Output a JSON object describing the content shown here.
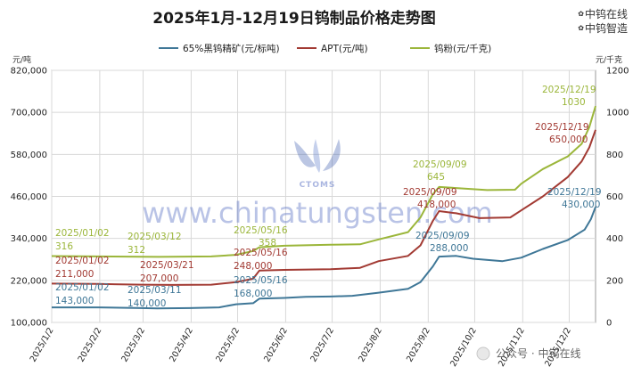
{
  "chart_data": {
    "type": "line",
    "title": "2025年1月-12月19日钨制品价格走势图",
    "y_left_unit": "元/吨",
    "y_right_unit": "元/千克",
    "ylim_left": [
      100000,
      820000
    ],
    "ylim_right": [
      0,
      1200
    ],
    "y_left_ticks": [
      100000,
      220000,
      340000,
      460000,
      580000,
      700000,
      820000
    ],
    "y_left_tick_labels": [
      "100,000",
      "220,000",
      "340,000",
      "460,000",
      "580,000",
      "700,000",
      "820,000"
    ],
    "y_right_ticks": [
      0,
      200,
      400,
      600,
      800,
      1000,
      1200
    ],
    "y_right_tick_labels": [
      "0",
      "200",
      "400",
      "600",
      "800",
      "1000",
      "1200"
    ],
    "x_ticks": [
      "2025/1/2",
      "2025/2/2",
      "2025/3/2",
      "2025/4/2",
      "2025/5/2",
      "2025/6/2",
      "2025/7/2",
      "2025/8/2",
      "2025/9/2",
      "2025/10/2",
      "2025/11/2",
      "2025/12/2"
    ],
    "grid": true,
    "legend_position": "top-center",
    "series": [
      {
        "name": "65%黑钨精矿(元/标吨)",
        "axis": "left",
        "color": "#3f7797",
        "points": [
          [
            "2025/1/2",
            143000
          ],
          [
            "2025/2/1",
            143000
          ],
          [
            "2025/3/1",
            141000
          ],
          [
            "2025/3/11",
            140000
          ],
          [
            "2025/4/1",
            141000
          ],
          [
            "2025/4/20",
            143000
          ],
          [
            "2025/5/1",
            152000
          ],
          [
            "2025/5/12",
            155000
          ],
          [
            "2025/5/16",
            168000
          ],
          [
            "2025/6/1",
            170000
          ],
          [
            "2025/6/15",
            173000
          ],
          [
            "2025/7/1",
            174000
          ],
          [
            "2025/7/15",
            176000
          ],
          [
            "2025/8/1",
            185000
          ],
          [
            "2025/8/20",
            196000
          ],
          [
            "2025/8/28",
            215000
          ],
          [
            "2025/9/5",
            260000
          ],
          [
            "2025/9/9",
            288000
          ],
          [
            "2025/9/20",
            290000
          ],
          [
            "2025/10/1",
            282000
          ],
          [
            "2025/10/20",
            275000
          ],
          [
            "2025/11/1",
            285000
          ],
          [
            "2025/11/15",
            310000
          ],
          [
            "2025/12/1",
            335000
          ],
          [
            "2025/12/12",
            365000
          ],
          [
            "2025/12/16",
            395000
          ],
          [
            "2025/12/19",
            430000
          ]
        ],
        "annotations": [
          {
            "date": "2025/01/02",
            "value": "143,000"
          },
          {
            "date": "2025/03/11",
            "value": "140,000"
          },
          {
            "date": "2025/05/16",
            "value": "168,000"
          },
          {
            "date": "2025/09/09",
            "value": "288,000"
          },
          {
            "date": "2025/12/19",
            "value": "430,000"
          }
        ]
      },
      {
        "name": "APT(元/吨)",
        "axis": "left",
        "color": "#a23a33",
        "points": [
          [
            "2025/1/2",
            211000
          ],
          [
            "2025/2/1",
            210000
          ],
          [
            "2025/3/1",
            208000
          ],
          [
            "2025/3/21",
            207000
          ],
          [
            "2025/4/15",
            208000
          ],
          [
            "2025/5/1",
            215000
          ],
          [
            "2025/5/12",
            225000
          ],
          [
            "2025/5/16",
            248000
          ],
          [
            "2025/6/1",
            250000
          ],
          [
            "2025/7/1",
            252000
          ],
          [
            "2025/7/20",
            256000
          ],
          [
            "2025/8/1",
            275000
          ],
          [
            "2025/8/20",
            290000
          ],
          [
            "2025/8/28",
            320000
          ],
          [
            "2025/9/5",
            390000
          ],
          [
            "2025/9/9",
            418000
          ],
          [
            "2025/9/20",
            412000
          ],
          [
            "2025/10/5",
            398000
          ],
          [
            "2025/10/25",
            400000
          ],
          [
            "2025/11/1",
            420000
          ],
          [
            "2025/11/15",
            460000
          ],
          [
            "2025/12/1",
            515000
          ],
          [
            "2025/12/10",
            560000
          ],
          [
            "2025/12/15",
            600000
          ],
          [
            "2025/12/19",
            650000
          ]
        ],
        "annotations": [
          {
            "date": "2025/01/02",
            "value": "211,000"
          },
          {
            "date": "2025/03/21",
            "value": "207,000"
          },
          {
            "date": "2025/05/16",
            "value": "248,000"
          },
          {
            "date": "2025/09/09",
            "value": "418,000"
          },
          {
            "date": "2025/12/19",
            "value": "650,000"
          }
        ]
      },
      {
        "name": "钨粉(元/千克)",
        "axis": "right",
        "color": "#9bb63a",
        "points": [
          [
            "2025/1/2",
            316
          ],
          [
            "2025/2/1",
            314
          ],
          [
            "2025/3/1",
            313
          ],
          [
            "2025/3/12",
            312
          ],
          [
            "2025/4/15",
            314
          ],
          [
            "2025/5/1",
            322
          ],
          [
            "2025/5/12",
            340
          ],
          [
            "2025/5/16",
            358
          ],
          [
            "2025/6/1",
            365
          ],
          [
            "2025/7/1",
            370
          ],
          [
            "2025/7/20",
            372
          ],
          [
            "2025/8/1",
            395
          ],
          [
            "2025/8/20",
            430
          ],
          [
            "2025/8/28",
            500
          ],
          [
            "2025/9/5",
            610
          ],
          [
            "2025/9/9",
            645
          ],
          [
            "2025/9/20",
            640
          ],
          [
            "2025/10/10",
            630
          ],
          [
            "2025/10/28",
            632
          ],
          [
            "2025/11/1",
            660
          ],
          [
            "2025/11/15",
            730
          ],
          [
            "2025/12/1",
            790
          ],
          [
            "2025/12/10",
            850
          ],
          [
            "2025/12/15",
            930
          ],
          [
            "2025/12/19",
            1030
          ]
        ],
        "annotations": [
          {
            "date": "2025/01/02",
            "value": "316"
          },
          {
            "date": "2025/03/12",
            "value": "312"
          },
          {
            "date": "2025/05/16",
            "value": "358"
          },
          {
            "date": "2025/09/09",
            "value": "645"
          },
          {
            "date": "2025/12/19",
            "value": "1030"
          }
        ]
      }
    ],
    "watermark": {
      "logo_text": "CTOMS",
      "site": "www.chinatungsten.com"
    }
  },
  "brand": {
    "line1": "中钨在线",
    "line2": "中钨智造",
    "bottom_badge": "公众号 · 中钨在线"
  }
}
